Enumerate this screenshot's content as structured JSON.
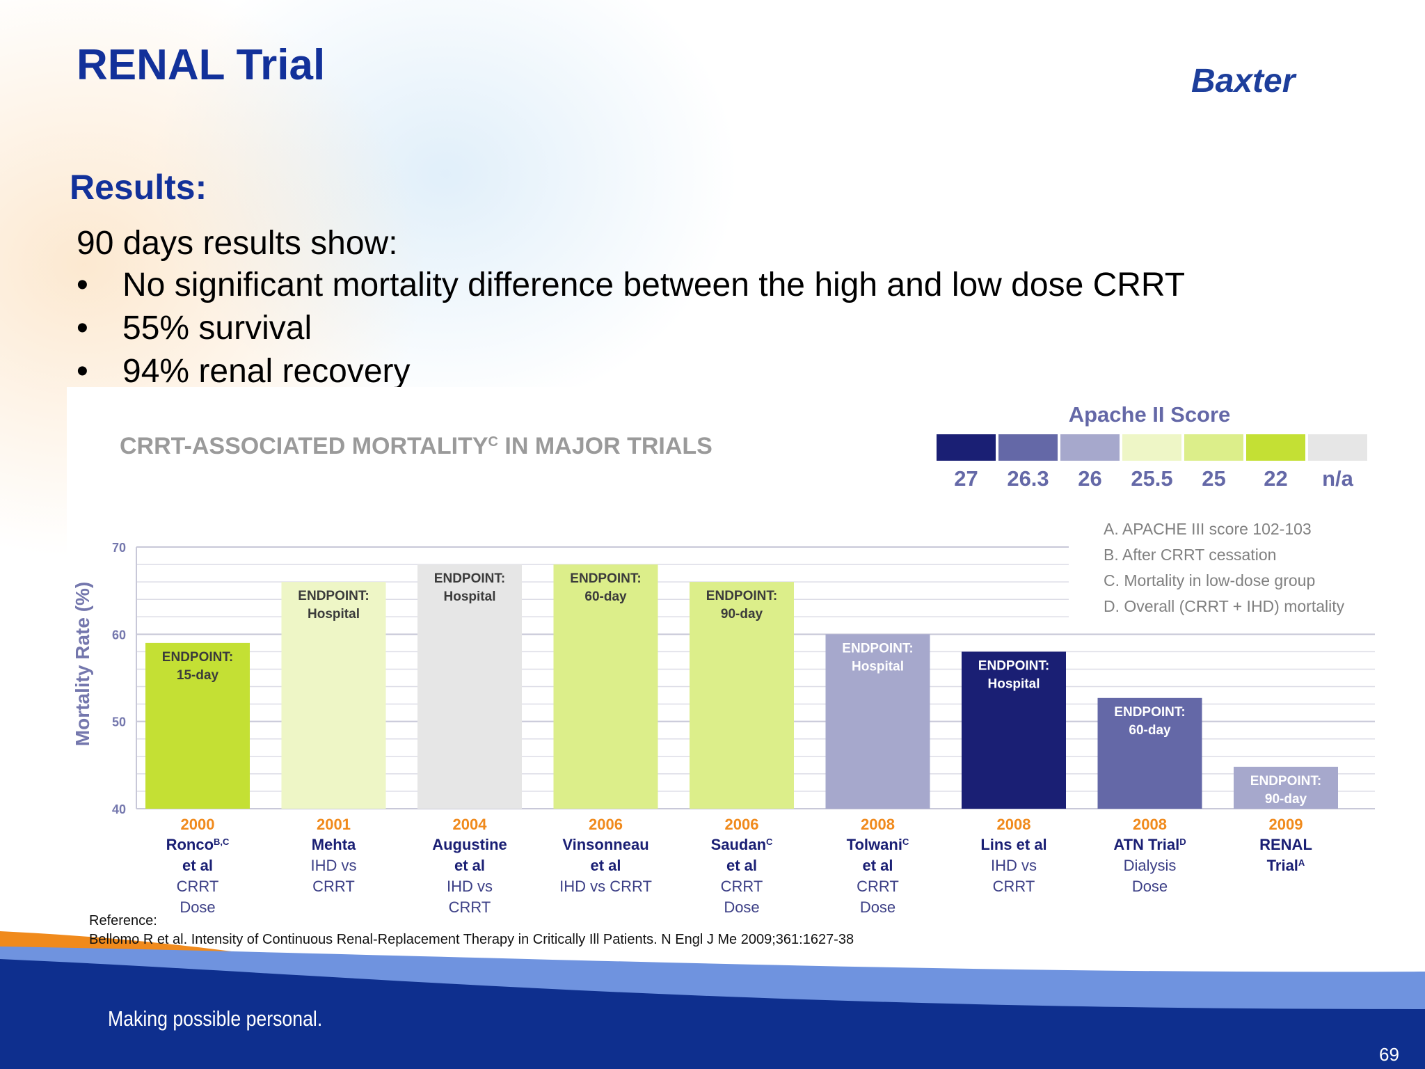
{
  "slide": {
    "title": "RENAL Trial",
    "logo_text": "Baxter",
    "results_heading": "Results:",
    "intro": "90 days results show:",
    "bullets": [
      "No significant mortality difference between the high and low dose CRRT",
      "55% survival",
      "94% renal recovery"
    ],
    "reference_label": "Reference:",
    "reference_text": "Bellomo R et al. Intensity of Continuous Renal-Replacement Therapy in Critically Ill Patients. N Engl J Me 2009;361:1627-38",
    "tagline": "Making possible personal.",
    "page_number": "69"
  },
  "colors": {
    "title": "#12319a",
    "score_27": "#1a1f74",
    "score_26_3": "#6468a7",
    "score_26": "#a6a8cc",
    "score_25_5": "#eef6c6",
    "score_25": "#dcee8a",
    "score_22": "#c4e034",
    "score_na": "#e6e6e6",
    "footer_dark": "#0e2f8e",
    "footer_light": "#6f93df",
    "footer_orange": "#f08a1c"
  },
  "chart_data": {
    "type": "bar",
    "title": "CRRT-ASSOCIATED MORTALITY",
    "title_superscript": "C",
    "title_suffix": " IN MAJOR TRIALS",
    "ylabel": "Mortality Rate (%)",
    "ylim": [
      40,
      70
    ],
    "yticks": [
      40,
      50,
      60,
      70
    ],
    "grid": true,
    "legend": {
      "title": "Apache II Score",
      "placement": "top-right",
      "items": [
        {
          "label": "27",
          "color": "#1a1f74"
        },
        {
          "label": "26.3",
          "color": "#6468a7"
        },
        {
          "label": "26",
          "color": "#a6a8cc"
        },
        {
          "label": "25.5",
          "color": "#eef6c6"
        },
        {
          "label": "25",
          "color": "#dcee8a"
        },
        {
          "label": "22",
          "color": "#c4e034"
        },
        {
          "label": "n/a",
          "color": "#e6e6e6"
        }
      ]
    },
    "footnotes": [
      "A. APACHE III score 102-103",
      "B. After CRRT cessation",
      "C. Mortality in low-dose group",
      "D. Overall (CRRT + IHD) mortality"
    ],
    "bars": [
      {
        "year": "2000",
        "label_lines": [
          {
            "t": "Ronco",
            "sup": "B,C",
            "bold": true
          },
          {
            "t": "et al",
            "bold": true
          },
          {
            "t": "CRRT"
          },
          {
            "t": "Dose"
          }
        ],
        "value": 59,
        "endpoint": [
          "ENDPOINT:",
          "15-day"
        ],
        "color": "#c4e034",
        "light_text": false
      },
      {
        "year": "2001",
        "label_lines": [
          {
            "t": "Mehta",
            "bold": true
          },
          {
            "t": "IHD vs"
          },
          {
            "t": "CRRT"
          }
        ],
        "value": 66,
        "endpoint": [
          "ENDPOINT:",
          "Hospital"
        ],
        "color": "#eef6c6",
        "light_text": false
      },
      {
        "year": "2004",
        "label_lines": [
          {
            "t": "Augustine",
            "bold": true
          },
          {
            "t": "et al",
            "bold": true
          },
          {
            "t": "IHD vs"
          },
          {
            "t": "CRRT"
          }
        ],
        "value": 68,
        "endpoint": [
          "ENDPOINT:",
          "Hospital"
        ],
        "color": "#e6e6e6",
        "light_text": false
      },
      {
        "year": "2006",
        "label_lines": [
          {
            "t": "Vinsonneau",
            "bold": true
          },
          {
            "t": "et al",
            "bold": true
          },
          {
            "t": "IHD vs CRRT"
          }
        ],
        "value": 68,
        "endpoint": [
          "ENDPOINT:",
          "60-day"
        ],
        "color": "#dcee8a",
        "light_text": false
      },
      {
        "year": "2006",
        "label_lines": [
          {
            "t": "Saudan",
            "sup": "C",
            "bold": true
          },
          {
            "t": "et al",
            "bold": true
          },
          {
            "t": "CRRT"
          },
          {
            "t": "Dose"
          }
        ],
        "value": 66,
        "endpoint": [
          "ENDPOINT:",
          "90-day"
        ],
        "color": "#dcee8a",
        "light_text": false
      },
      {
        "year": "2008",
        "label_lines": [
          {
            "t": "Tolwani",
            "sup": "C",
            "bold": true
          },
          {
            "t": "et al",
            "bold": true
          },
          {
            "t": "CRRT"
          },
          {
            "t": "Dose"
          }
        ],
        "value": 60,
        "endpoint": [
          "ENDPOINT:",
          "Hospital"
        ],
        "color": "#a6a8cc",
        "light_text": true
      },
      {
        "year": "2008",
        "label_lines": [
          {
            "t": "Lins et al",
            "bold": true
          },
          {
            "t": "IHD vs"
          },
          {
            "t": "CRRT"
          }
        ],
        "value": 58,
        "endpoint": [
          "ENDPOINT:",
          "Hospital"
        ],
        "color": "#1a1f74",
        "light_text": true
      },
      {
        "year": "2008",
        "label_lines": [
          {
            "t": "ATN Trial",
            "sup": "D",
            "bold": true
          },
          {
            "t": "Dialysis"
          },
          {
            "t": "Dose"
          }
        ],
        "value": 52.7,
        "endpoint": [
          "ENDPOINT:",
          "60-day"
        ],
        "color": "#6468a7",
        "light_text": true
      },
      {
        "year": "2009",
        "label_lines": [
          {
            "t": "RENAL",
            "bold": true
          },
          {
            "t": "Trial",
            "sup": "A",
            "bold": true
          }
        ],
        "value": 44.8,
        "endpoint": [
          "ENDPOINT:",
          "90-day"
        ],
        "color": "#a6a8cc",
        "light_text": true
      }
    ]
  }
}
